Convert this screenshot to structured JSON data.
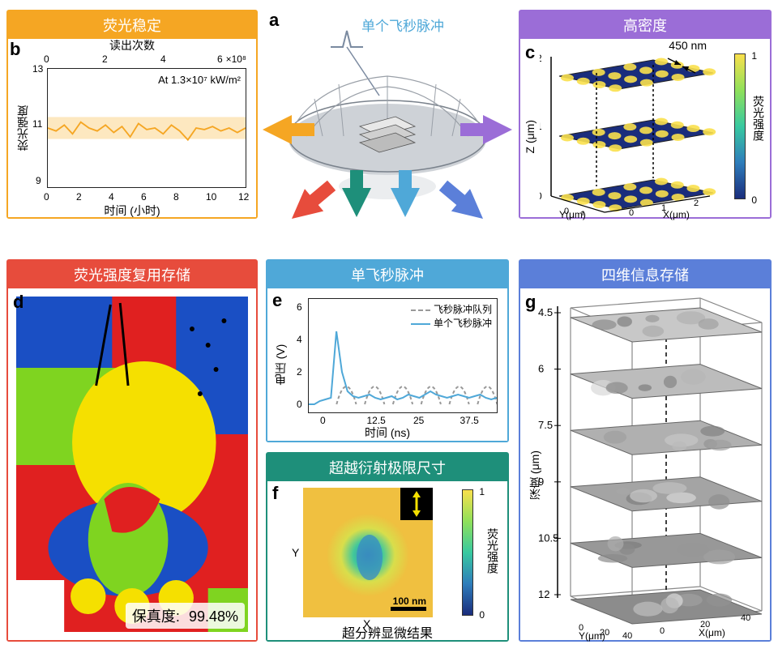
{
  "panel_b": {
    "border_color": "#f5a623",
    "title": "荧光稳定",
    "label": "b",
    "top_xlabel": "读出次数",
    "top_xlim": [
      0,
      6
    ],
    "top_xexp": "×10⁸",
    "bottom_xlabel": "时间 (小时)",
    "bottom_xticks": [
      0,
      2,
      4,
      6,
      8,
      10,
      12
    ],
    "ylabel": "荧光强度",
    "ylim": [
      9,
      13
    ],
    "yticks": [
      9,
      11,
      13
    ],
    "annotation": "At 1.3×10⁷ kW/m²",
    "line_color": "#f5a623",
    "band_color": "#fde8c0",
    "data_y": [
      11.0,
      10.9,
      11.1,
      10.8,
      11.2,
      11.0,
      10.9,
      11.1,
      10.85,
      11.05,
      10.7,
      11.15,
      10.95,
      11.0,
      10.8,
      11.1,
      10.9,
      10.6,
      11.0,
      10.95,
      11.05,
      10.9,
      11.0,
      10.85,
      11.0
    ]
  },
  "center": {
    "label": "a",
    "caption": "单个飞秒脉冲",
    "caption_color": "#4fa8d8"
  },
  "arrows": {
    "left": "#f5a623",
    "right": "#9b6dd7",
    "bottomleft": "#e74c3c",
    "bottom1": "#1e8f7a",
    "bottom2": "#4fa8d8",
    "bottomright": "#5b7fd9"
  },
  "panel_c": {
    "border_color": "#9b6dd7",
    "title": "高密度",
    "label": "c",
    "spacing_label": "450 nm",
    "zlabel": "Z (μm)",
    "zticks": [
      0,
      1,
      2
    ],
    "xlabel": "X(μm)",
    "ylabel": "Y(μm)",
    "xticks": [
      0,
      1,
      2
    ],
    "colorbar_label": "荧光强度",
    "colorbar_ticks": [
      0,
      1
    ],
    "grid_size": 4,
    "dot_color": "#f9e04c",
    "plane_gradient": [
      "#1a2d7c",
      "#2e7dbb",
      "#38c9a0"
    ]
  },
  "panel_d": {
    "border_color": "#e74c3c",
    "title": "荧光强度复用存储",
    "label": "d",
    "fidelity_label": "保真度:",
    "fidelity_value": "99.48%",
    "image_colors": [
      "#e02020",
      "#1a4fc4",
      "#7fd420",
      "#f5e000",
      "#ffffff",
      "#000000"
    ]
  },
  "panel_e": {
    "border_color": "#4fa8d8",
    "title": "单飞秒脉冲",
    "label": "e",
    "xlabel": "时间 (ns)",
    "xticks": [
      0,
      12.5,
      25,
      37.5
    ],
    "ylabel": "电压 (V)",
    "yticks": [
      0,
      2,
      4,
      6
    ],
    "legend": [
      {
        "label": "飞秒脉冲队列",
        "style": "dashed",
        "color": "#999999"
      },
      {
        "label": "单个飞秒脉冲",
        "style": "solid",
        "color": "#4fa8d8"
      }
    ],
    "solid_data": [
      0,
      0,
      0.2,
      0.3,
      0.4,
      4.5,
      2.0,
      0.8,
      0.5,
      0.4,
      0.5,
      0.6,
      0.4,
      0.3,
      0.4,
      0.5,
      0.3,
      0.4,
      0.6,
      0.5,
      0.4,
      0.6,
      0.8,
      0.6,
      0.5,
      0.4,
      0.5,
      0.6,
      0.5,
      0.4,
      0.5,
      0.6,
      0.4,
      0.3,
      0.4
    ],
    "dashed_peaks": [
      5,
      12.5,
      20,
      27.5,
      35,
      42.5
    ]
  },
  "panel_f": {
    "border_color": "#1e8f7a",
    "title": "超越衍射极限尺寸",
    "label": "f",
    "bottom_caption": "超分辨显微结果",
    "xlabel": "X",
    "ylabel": "Y",
    "scalebar": "100 nm",
    "colorbar_label": "荧光强度",
    "colorbar_ticks": [
      0,
      1
    ],
    "inset_arrow_color": "#f5e000"
  },
  "panel_g": {
    "border_color": "#5b7fd9",
    "title": "四维信息存储",
    "label": "g",
    "depth_label": "深度 (μm)",
    "depth_ticks": [
      4.5,
      6,
      7.5,
      9,
      10.5,
      12
    ],
    "xlabel": "X(μm)",
    "ylabel": "Y(μm)",
    "xy_ticks": [
      0,
      20,
      40
    ],
    "n_layers": 6
  }
}
